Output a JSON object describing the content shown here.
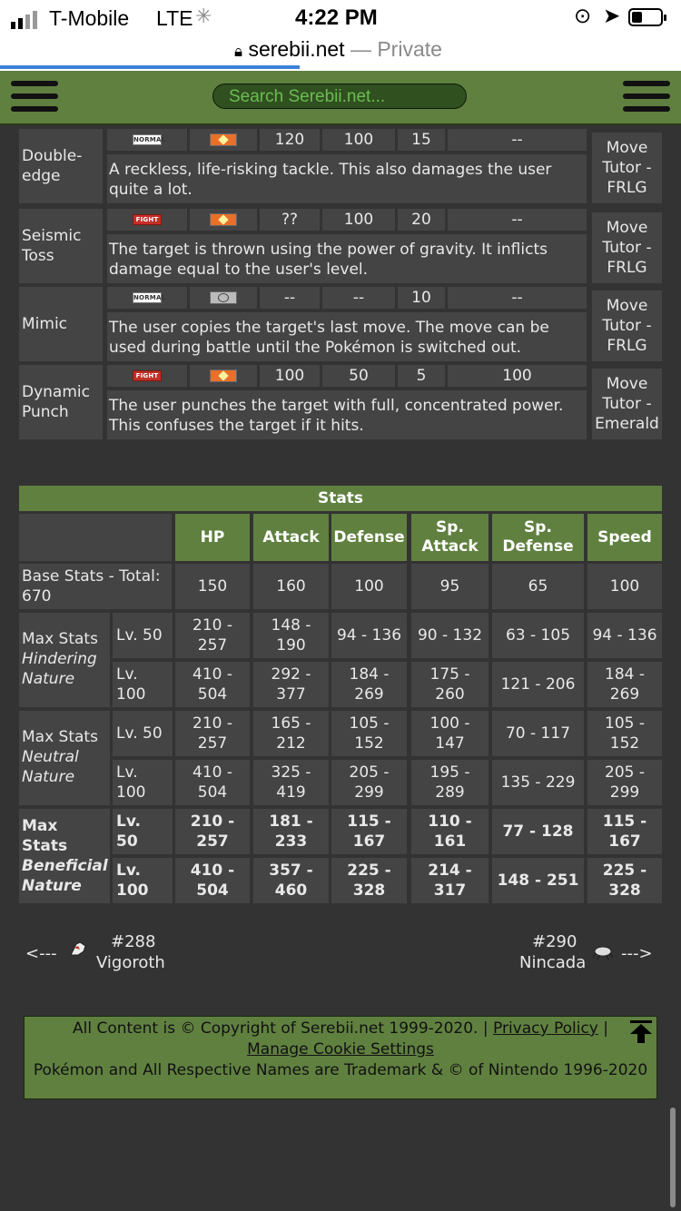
{
  "status_bar": {
    "carrier": "T-Mobile",
    "network": "LTE",
    "time": "4:22 PM"
  },
  "browser": {
    "domain": "serebii.net",
    "mode": "— Private"
  },
  "header": {
    "search_placeholder": "Search Serebii.net..."
  },
  "moves": [
    {
      "name": "Double-\nedge",
      "type": "NORMAL",
      "category": "physical",
      "power": "120",
      "accuracy": "100",
      "pp": "15",
      "effect": "--",
      "description": "A reckless, life-risking tackle. This also damages the user quite a lot.",
      "method": "Move\nTutor -\nFRLG"
    },
    {
      "name": "Seismic\nToss",
      "type": "FIGHT",
      "category": "physical",
      "power": "??",
      "accuracy": "100",
      "pp": "20",
      "effect": "--",
      "description": "The target is thrown using the power of gravity. It inflicts damage equal to the user's level.",
      "method": "Move\nTutor -\nFRLG"
    },
    {
      "name": "Mimic",
      "type": "NORMAL",
      "category": "status",
      "power": "--",
      "accuracy": "--",
      "pp": "10",
      "effect": "--",
      "description": "The user copies the target's last move. The move can be used during battle until the Pokémon is switched out.",
      "method": "Move\nTutor -\nFRLG"
    },
    {
      "name": "Dynamic\nPunch",
      "type": "FIGHT",
      "category": "physical",
      "power": "100",
      "accuracy": "50",
      "pp": "5",
      "effect": "100",
      "description": "The user punches the target with full, concentrated power. This confuses the target if it hits.",
      "method": "Move\nTutor -\nEmerald"
    }
  ],
  "stats": {
    "title": "Stats",
    "headers": [
      "HP",
      "Attack",
      "Defense",
      "Sp.\nAttack",
      "Sp.\nDefense",
      "Speed"
    ],
    "base": {
      "label": "Base Stats - Total:\n670",
      "values": [
        "150",
        "160",
        "100",
        "95",
        "65",
        "100"
      ]
    },
    "groups": [
      {
        "label_main": "Max Stats",
        "label_sub": "Hindering\nNature",
        "rows": [
          {
            "level": "Lv. 50",
            "values": [
              "210 -\n257",
              "148 -\n190",
              "94 - 136",
              "90 - 132",
              "63 - 105",
              "94 - 136"
            ]
          },
          {
            "level": "Lv.\n100",
            "values": [
              "410 -\n504",
              "292 -\n377",
              "184 -\n269",
              "175 -\n260",
              "121 - 206",
              "184 -\n269"
            ]
          }
        ]
      },
      {
        "label_main": "Max Stats",
        "label_sub": "Neutral\nNature",
        "rows": [
          {
            "level": "Lv. 50",
            "values": [
              "210 -\n257",
              "165 -\n212",
              "105 -\n152",
              "100 -\n147",
              "70 - 117",
              "105 -\n152"
            ]
          },
          {
            "level": "Lv.\n100",
            "values": [
              "410 -\n504",
              "325 -\n419",
              "205 -\n299",
              "195 -\n289",
              "135 - 229",
              "205 -\n299"
            ]
          }
        ]
      },
      {
        "label_main": "Max\nStats",
        "label_sub": "Beneficial\nNature",
        "rows": [
          {
            "level": "Lv.\n50",
            "values": [
              "210 -\n257",
              "181 -\n233",
              "115 -\n167",
              "110 -\n161",
              "77 - 128",
              "115 -\n167"
            ]
          },
          {
            "level": "Lv.\n100",
            "values": [
              "410 -\n504",
              "357 -\n460",
              "225 -\n328",
              "214 -\n317",
              "148 - 251",
              "225 -\n328"
            ]
          }
        ]
      }
    ]
  },
  "navigation": {
    "prev": {
      "arrow": "<---",
      "number": "#288",
      "name": "Vigoroth"
    },
    "next": {
      "arrow": "--->",
      "number": "#290",
      "name": "Nincada"
    }
  },
  "footer": {
    "copyright": "All Content is © Copyright of Serebii.net 1999-2020. |",
    "privacy": "Privacy Policy",
    "sep": "|",
    "cookies": "Manage Cookie Settings",
    "trademark": "Pokémon and All Respective Names are Trademark & © of Nintendo 1996-2020"
  },
  "colors": {
    "site_green": "#608040",
    "cell_bg": "#444444",
    "page_bg": "#333333",
    "search_bg": "#305020"
  },
  "icons": [
    "signal-icon",
    "loading-icon",
    "lock-icon",
    "orientation-lock-icon",
    "location-icon",
    "battery-icon",
    "menu-icon",
    "back-to-top-icon",
    "vigoroth-sprite-icon",
    "nincada-sprite-icon"
  ]
}
